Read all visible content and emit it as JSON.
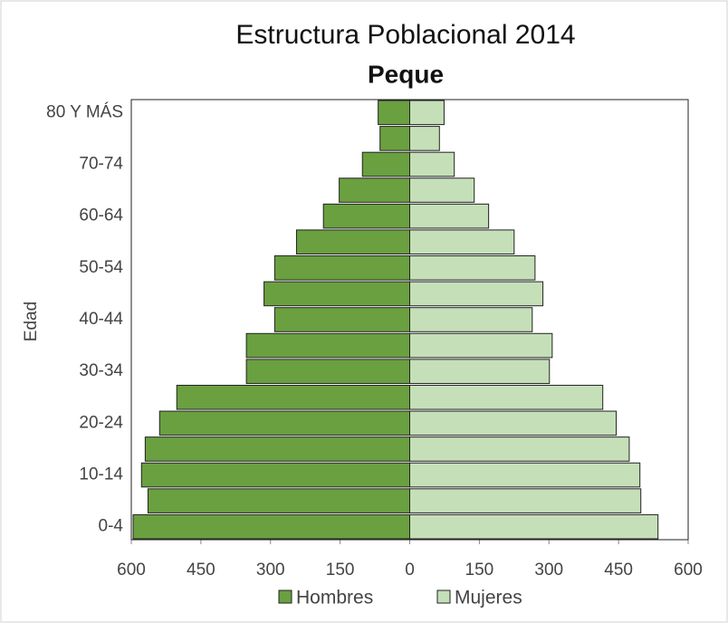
{
  "chart_data": {
    "type": "pyramid",
    "title": "Estructura Poblacional 2014",
    "subtitle": "Peque",
    "y_label": "Edad",
    "categories": [
      "0-4",
      null,
      "10-14",
      null,
      "20-24",
      null,
      "30-34",
      null,
      "40-44",
      null,
      "50-54",
      null,
      "60-64",
      null,
      "70-74",
      null,
      "80 Y MÁS"
    ],
    "series": [
      {
        "name": "Hombres",
        "color": "#6aa040",
        "values": [
          -596,
          -564,
          -578,
          -570,
          -539,
          -502,
          -352,
          -352,
          -291,
          -314,
          -291,
          -244,
          -186,
          -152,
          -102,
          -64,
          -68
        ]
      },
      {
        "name": "Mujeres",
        "color": "#c5dfb8",
        "values": [
          535,
          498,
          496,
          473,
          445,
          416,
          301,
          307,
          264,
          287,
          270,
          225,
          170,
          139,
          96,
          64,
          74
        ]
      }
    ],
    "xlim": [
      -600,
      600
    ],
    "xticks": [
      {
        "value": -600,
        "label": "600"
      },
      {
        "value": -450,
        "label": "450"
      },
      {
        "value": -300,
        "label": "300"
      },
      {
        "value": -150,
        "label": "150"
      },
      0,
      150,
      300,
      450,
      600
    ],
    "legend": "bottom"
  }
}
